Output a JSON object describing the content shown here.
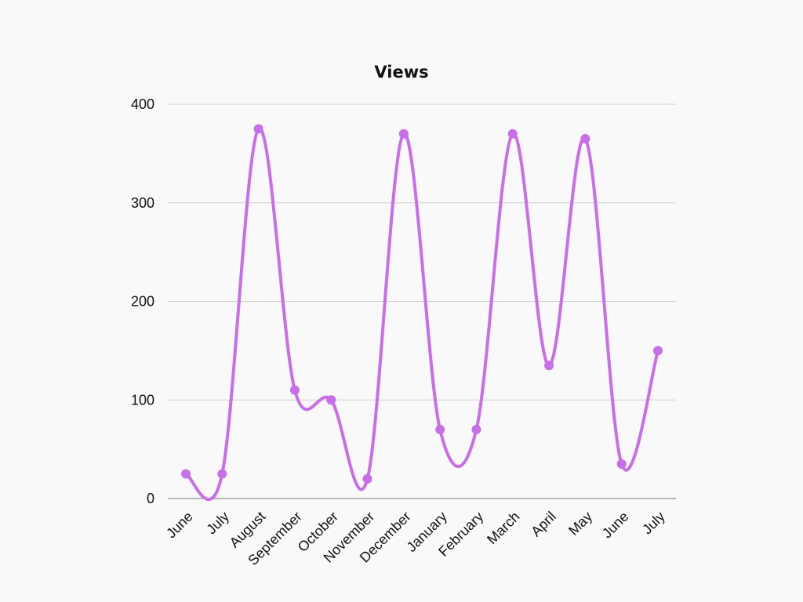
{
  "chart_data": {
    "type": "line",
    "title": "Views",
    "xlabel": "",
    "ylabel": "",
    "categories": [
      "June",
      "July",
      "August",
      "September",
      "October",
      "November",
      "December",
      "January",
      "February",
      "March",
      "April",
      "May",
      "June",
      "July"
    ],
    "series": [
      {
        "values": [
          25,
          25,
          375,
          110,
          100,
          20,
          370,
          70,
          70,
          370,
          135,
          365,
          35,
          150
        ],
        "color": "#c76ee8"
      }
    ],
    "ylim": [
      0,
      400
    ],
    "yticks": [
      0,
      100,
      200,
      300,
      400
    ],
    "grid": true,
    "legend": "none"
  }
}
